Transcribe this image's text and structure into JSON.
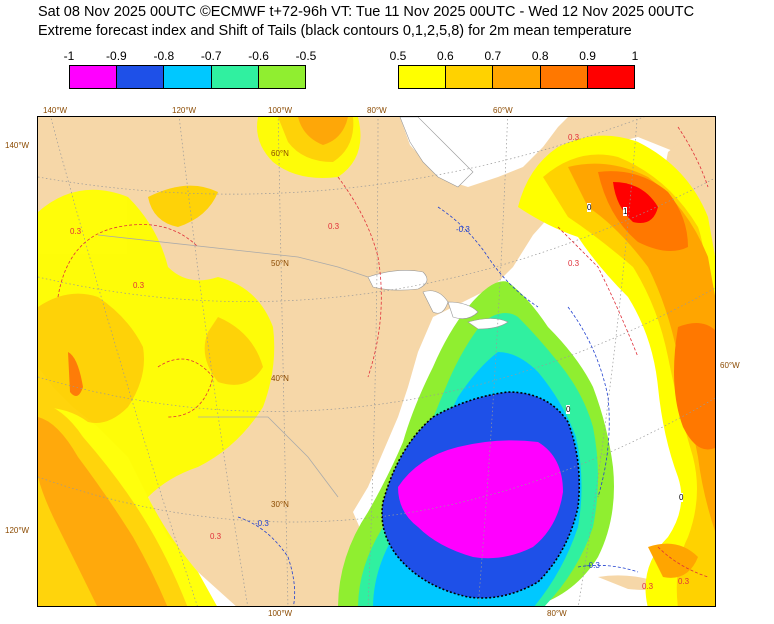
{
  "header": {
    "line1": "Sat 08 Nov 2025 00UTC ©ECMWF t+72-96h  VT: Tue 11 Nov 2025 00UTC - Wed 12 Nov 2025 00UTC",
    "line2": "Extreme forecast index and Shift of Tails (black contours 0,1,2,5,8) for 2m mean temperature"
  },
  "legend_cold": {
    "ticks": [
      "-1",
      "-0.9",
      "-0.8",
      "-0.7",
      "-0.6",
      "-0.5"
    ],
    "colors": [
      "#ff00ff",
      "#1e50e8",
      "#00c8ff",
      "#30f0a0",
      "#90ee30"
    ]
  },
  "legend_warm": {
    "ticks": [
      "0.5",
      "0.6",
      "0.7",
      "0.8",
      "0.9",
      "1"
    ],
    "colors": [
      "#ffff00",
      "#ffd200",
      "#ffa500",
      "#ff7800",
      "#ff0000"
    ]
  },
  "map": {
    "land_color": "#f6d7a8",
    "ocean_color": "#ffffff",
    "lon_labels_top": [
      "140°W",
      "120°W",
      "100°W",
      "80°W",
      "60°W"
    ],
    "lon_labels_bottom": [
      "100°W",
      "80°W"
    ],
    "lon_labels_left": [
      "140°W",
      "120°W"
    ],
    "lon_labels_right": [
      "60°W"
    ],
    "lat_labels": [
      "60°N",
      "50°N",
      "40°N",
      "30°N"
    ],
    "contour_labels_red": [
      "0.3",
      "0.3",
      "0.3",
      "0.3",
      "0.3",
      "0.3",
      "0.3",
      "0.3"
    ],
    "contour_labels_blue": [
      "-0.3",
      "-0.3",
      "-0.3"
    ],
    "contour_labels_black": [
      "0",
      "1",
      "0",
      "0"
    ]
  }
}
